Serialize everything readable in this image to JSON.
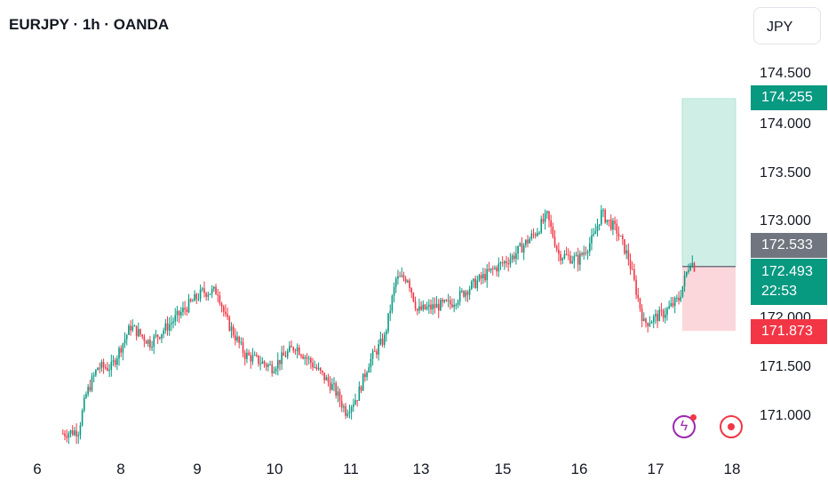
{
  "header": {
    "title": "EURJPY · 1h · OANDA"
  },
  "currency_button": {
    "label": "JPY"
  },
  "price_scale": {
    "labels": [
      "174.500",
      "174.000",
      "173.500",
      "173.000",
      "172.000",
      "171.500",
      "171.000"
    ]
  },
  "badges": {
    "target": "174.255",
    "entry": "172.533",
    "current_price": "172.493",
    "countdown": "22:53",
    "stop": "171.873"
  },
  "colors": {
    "up": "#089981",
    "down": "#f23645",
    "target_zone": "#cfeee6",
    "stop_zone": "#fbd7dc",
    "neutral": "#70757f"
  },
  "icons": [
    "lightning-alert-icon",
    "record-icon"
  ],
  "chart_data": {
    "type": "candlestick",
    "symbol": "EURJPY",
    "interval": "1h",
    "source": "OANDA",
    "ylim": [
      170.75,
      174.65
    ],
    "x_tick_labels": [
      "6",
      "8",
      "9",
      "10",
      "11",
      "13",
      "15",
      "16",
      "17",
      "18"
    ],
    "close_path": [
      [
        0,
        170.82
      ],
      [
        8,
        170.85
      ],
      [
        12,
        171.22
      ],
      [
        18,
        171.5
      ],
      [
        25,
        171.5
      ],
      [
        35,
        171.92
      ],
      [
        45,
        171.75
      ],
      [
        56,
        171.96
      ],
      [
        64,
        172.12
      ],
      [
        72,
        172.27
      ],
      [
        80,
        172.28
      ],
      [
        84,
        172.0
      ],
      [
        94,
        171.63
      ],
      [
        108,
        171.5
      ],
      [
        120,
        171.72
      ],
      [
        128,
        171.55
      ],
      [
        140,
        171.28
      ],
      [
        146,
        171.05
      ],
      [
        152,
        171.2
      ],
      [
        158,
        171.55
      ],
      [
        166,
        171.8
      ],
      [
        172,
        172.4
      ],
      [
        178,
        172.42
      ],
      [
        183,
        172.08
      ],
      [
        194,
        172.13
      ],
      [
        200,
        172.15
      ],
      [
        210,
        172.32
      ],
      [
        222,
        172.5
      ],
      [
        232,
        172.63
      ],
      [
        244,
        172.88
      ],
      [
        250,
        173.05
      ],
      [
        256,
        172.66
      ],
      [
        266,
        172.6
      ],
      [
        274,
        172.83
      ],
      [
        278,
        173.08
      ],
      [
        286,
        172.9
      ],
      [
        292,
        172.62
      ],
      [
        300,
        171.95
      ],
      [
        310,
        172.05
      ],
      [
        318,
        172.2
      ],
      [
        324,
        172.6
      ],
      [
        326,
        172.533
      ]
    ],
    "long_position": {
      "entry": 172.533,
      "target": 174.255,
      "stop": 171.873,
      "current": 172.493,
      "bar_countdown": "22:53"
    }
  }
}
